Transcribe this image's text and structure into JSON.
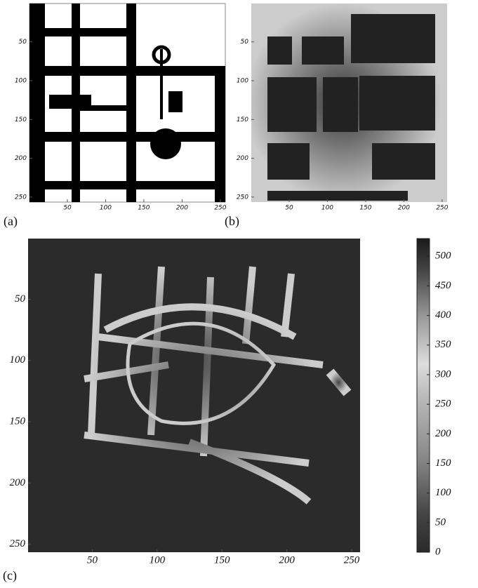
{
  "panels": [
    {
      "label": "(a)",
      "xlim": [
        0.5,
        256.5
      ],
      "ylim": [
        0.5,
        256.5
      ],
      "xticks": [
        50,
        100,
        150,
        200,
        250
      ],
      "yticks": [
        50,
        100,
        150,
        200,
        250
      ]
    },
    {
      "label": "(b)",
      "xlim": [
        0.5,
        256.5
      ],
      "ylim": [
        0.5,
        256.5
      ],
      "xticks": [
        50,
        100,
        150,
        200,
        250
      ],
      "yticks": [
        50,
        100,
        150,
        200,
        250
      ]
    },
    {
      "label": "(c)",
      "xlim": [
        0.5,
        256.5
      ],
      "ylim": [
        0.5,
        256.5
      ],
      "xticks": [
        50,
        100,
        150,
        200,
        250
      ],
      "yticks": [
        50,
        100,
        150,
        200,
        250
      ]
    }
  ],
  "colorbar": {
    "lim": [
      0,
      530
    ],
    "ticks": [
      0,
      50,
      100,
      150,
      200,
      250,
      300,
      350,
      400,
      450,
      500
    ]
  }
}
